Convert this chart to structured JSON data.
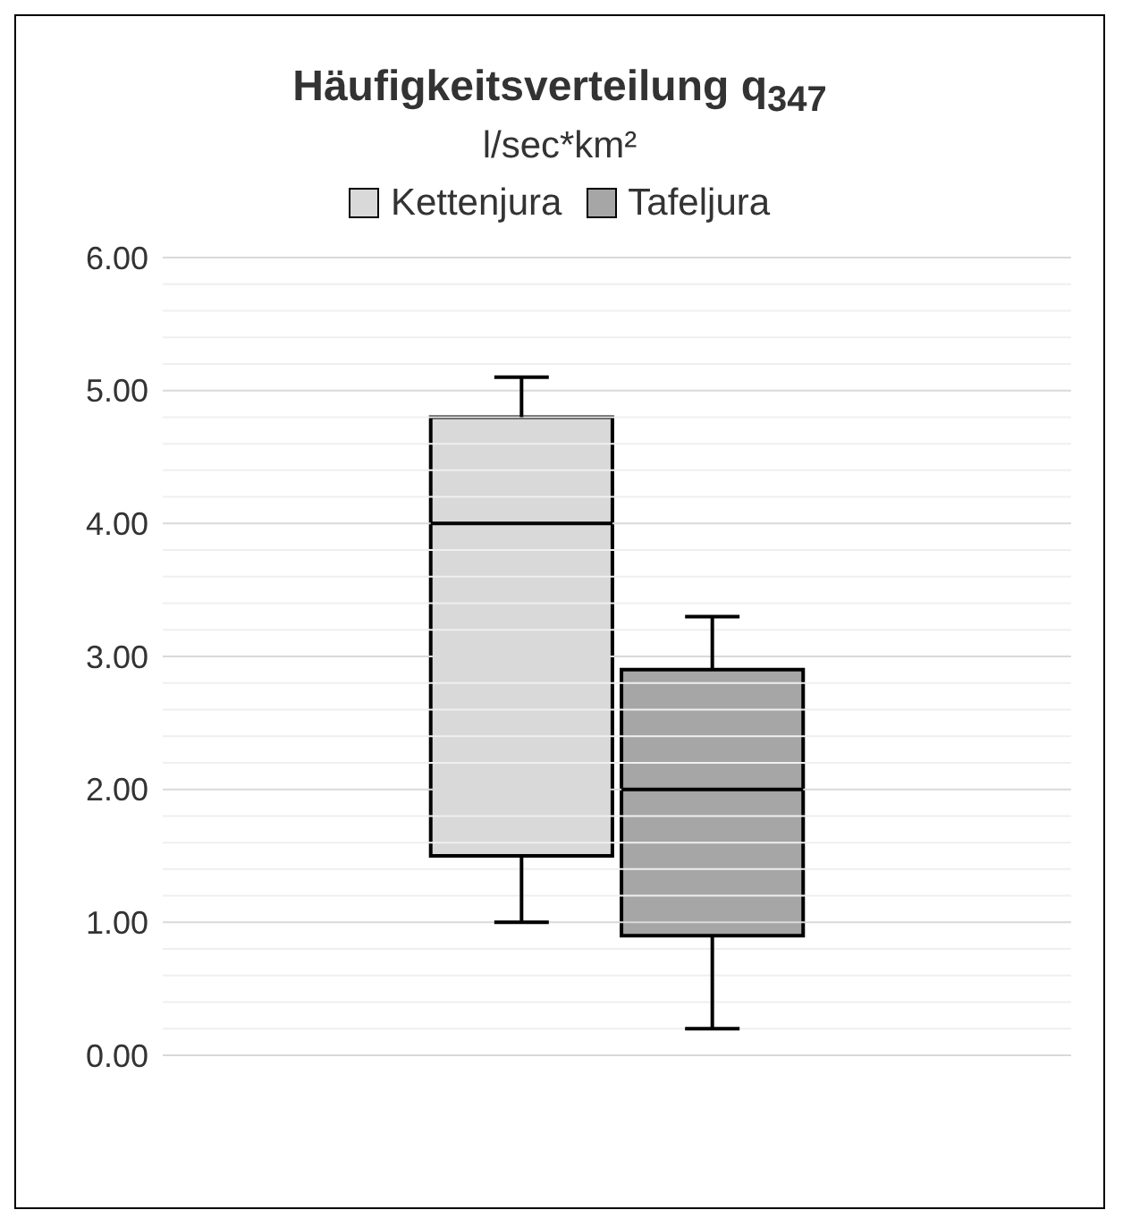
{
  "chart_data": {
    "type": "box",
    "title": "Häufigkeitsverteilung q$_{347}$",
    "subtitle": "l/sec*km²",
    "categories": [
      null
    ],
    "series": [
      {
        "name": "Kettenjura",
        "color": "#d9d9d9",
        "boxes": [
          {
            "low": 1.0,
            "q1": 1.5,
            "median": 4.0,
            "q3": 4.8,
            "high": 5.1
          }
        ]
      },
      {
        "name": "Tafeljura",
        "color": "#a6a6a6",
        "boxes": [
          {
            "low": 0.2,
            "q1": 0.9,
            "median": 2.0,
            "q3": 2.9,
            "high": 3.3
          }
        ]
      }
    ],
    "ylim": [
      0,
      6
    ],
    "yticks": [
      {
        "value": 0,
        "label": "0.00"
      },
      {
        "value": 0.2,
        "label": null
      },
      {
        "value": 0.4,
        "label": null
      },
      {
        "value": 0.6,
        "label": null
      },
      {
        "value": 0.8,
        "label": null
      },
      {
        "value": 1,
        "label": "1.00"
      },
      {
        "value": 1.2,
        "label": null
      },
      {
        "value": 1.4,
        "label": null
      },
      {
        "value": 1.6,
        "label": null
      },
      {
        "value": 1.8,
        "label": null
      },
      {
        "value": 2,
        "label": "2.00"
      },
      {
        "value": 2.2,
        "label": null
      },
      {
        "value": 2.4,
        "label": null
      },
      {
        "value": 2.6,
        "label": null
      },
      {
        "value": 2.8,
        "label": null
      },
      {
        "value": 3,
        "label": "3.00"
      },
      {
        "value": 3.2,
        "label": null
      },
      {
        "value": 3.4,
        "label": null
      },
      {
        "value": 3.6,
        "label": null
      },
      {
        "value": 3.8,
        "label": null
      },
      {
        "value": 4,
        "label": "4.00"
      },
      {
        "value": 4.2,
        "label": null
      },
      {
        "value": 4.4,
        "label": null
      },
      {
        "value": 4.6,
        "label": null
      },
      {
        "value": 4.8,
        "label": null
      },
      {
        "value": 5,
        "label": "5.00"
      },
      {
        "value": 5.2,
        "label": null
      },
      {
        "value": 5.4,
        "label": null
      },
      {
        "value": 5.6,
        "label": null
      },
      {
        "value": 5.8,
        "label": null
      },
      {
        "value": 6,
        "label": "6.00"
      }
    ],
    "grid": "y",
    "legend": "top",
    "tick_labels": "y"
  }
}
